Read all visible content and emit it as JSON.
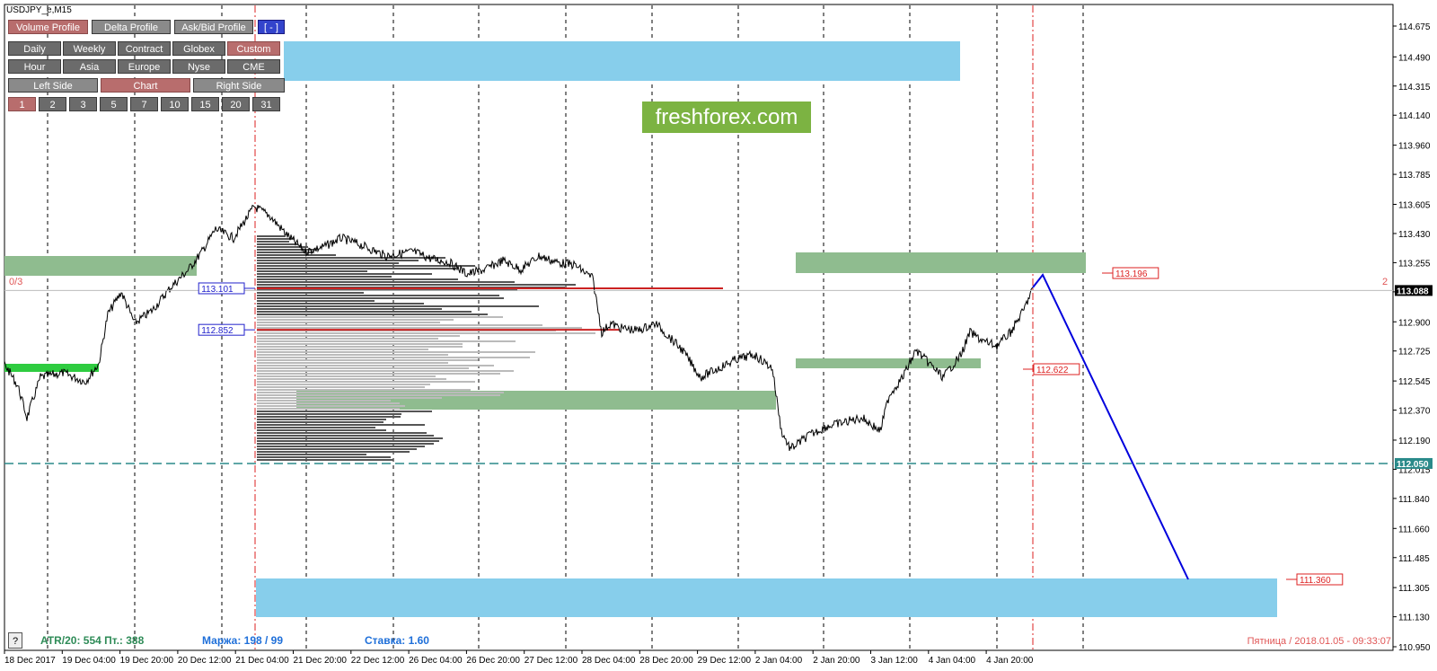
{
  "window": {
    "title": "USDJPY_e,M15"
  },
  "toolbar": {
    "row1": [
      {
        "label": "Volume Profile",
        "state": "active"
      },
      {
        "label": "Delta Profile",
        "state": "normal"
      },
      {
        "label": "Ask/Bid Profile",
        "state": "normal"
      },
      {
        "label": "[ - ]",
        "state": "blue"
      }
    ],
    "row2": [
      "Daily",
      "Weekly",
      "Contract",
      "Globex",
      "Custom"
    ],
    "row2_active": "Custom",
    "row3": [
      "Hour",
      "Asia",
      "Europe",
      "Nyse",
      "CME"
    ],
    "row4": [
      "Left Side",
      "Chart",
      "Right Side"
    ],
    "row4_active": "Chart",
    "row5": [
      "1",
      "2",
      "3",
      "5",
      "7",
      "10",
      "15",
      "20",
      "31"
    ],
    "row5_active": "1"
  },
  "logo": "freshforex.com",
  "labels": {
    "left_counter": "0/3",
    "right_counter": "2",
    "poc_1": "113.101",
    "poc_2": "112.852",
    "level_up": "113.196",
    "level_mid": "112.622",
    "level_target": "111.360"
  },
  "price_axis": {
    "ticks": [
      "114.675",
      "114.490",
      "114.315",
      "114.140",
      "113.960",
      "113.785",
      "113.605",
      "113.430",
      "113.255",
      "113.080",
      "112.900",
      "112.725",
      "112.545",
      "112.370",
      "112.190",
      "112.015",
      "111.840",
      "111.660",
      "111.485",
      "111.305",
      "111.130",
      "110.950"
    ],
    "current_price": "113.088",
    "line_price": "112.050"
  },
  "time_axis": [
    "18 Dec 2017",
    "19 Dec 04:00",
    "19 Dec 20:00",
    "20 Dec 12:00",
    "21 Dec 04:00",
    "21 Dec 20:00",
    "22 Dec 12:00",
    "26 Dec 04:00",
    "26 Dec 20:00",
    "27 Dec 12:00",
    "28 Dec 04:00",
    "28 Dec 20:00",
    "29 Dec 12:00",
    "2 Jan 04:00",
    "2 Jan 20:00",
    "3 Jan 12:00",
    "4 Jan 04:00",
    "4 Jan 20:00"
  ],
  "status": {
    "help": "?",
    "atr": "ATR/20: 554  Пт.: 388",
    "margin": "Маржа: 198 / 99",
    "rate": "Ставка: 1.60",
    "datetime": "Пятница  /  2018.01.05 - 09:33:07"
  },
  "colors": {
    "blue_zone": "#87ceeb",
    "green_zone": "#8fbc8f",
    "bright_green": "#2ecc40",
    "profile_dark": "#555555",
    "profile_light": "#bbbbbb",
    "poc_line": "#cc2222",
    "projection": "#0000dd",
    "status_green": "#2e8b57",
    "status_blue": "#1e6fd9"
  }
}
